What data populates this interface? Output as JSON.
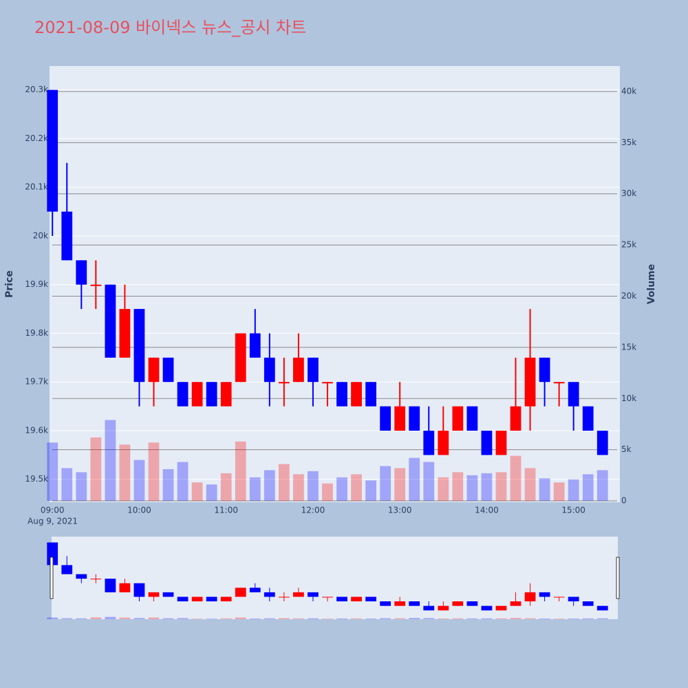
{
  "chart_data": {
    "type": "candlestick",
    "title": "2021-08-09 바이넥스 뉴스_공시 차트",
    "y_label": "Price",
    "y2_label": "Volume",
    "x_date_label": "Aug 9, 2021",
    "increasing_color": "#ff0000",
    "decreasing_color": "#0000ff",
    "x": [
      "09:00",
      "09:10",
      "09:20",
      "09:30",
      "09:40",
      "09:50",
      "10:00",
      "10:10",
      "10:20",
      "10:30",
      "10:40",
      "10:50",
      "11:00",
      "11:10",
      "11:20",
      "11:30",
      "11:40",
      "11:50",
      "12:00",
      "12:10",
      "12:20",
      "12:30",
      "12:40",
      "12:50",
      "13:00",
      "13:10",
      "13:20",
      "13:30",
      "13:40",
      "13:50",
      "14:00",
      "14:10",
      "14:20",
      "14:30",
      "14:40",
      "14:50",
      "15:00",
      "15:10",
      "15:20"
    ],
    "open": [
      20300,
      20050,
      19950,
      19900,
      19900,
      19750,
      19850,
      19700,
      19750,
      19700,
      19650,
      19700,
      19650,
      19700,
      19800,
      19750,
      19700,
      19700,
      19750,
      19700,
      19700,
      19650,
      19700,
      19650,
      19600,
      19650,
      19600,
      19550,
      19600,
      19650,
      19600,
      19550,
      19600,
      19650,
      19750,
      19700,
      19700,
      19650,
      19600
    ],
    "high": [
      20300,
      20150,
      19950,
      19950,
      19900,
      19900,
      19850,
      19750,
      19750,
      19700,
      19700,
      19700,
      19700,
      19800,
      19850,
      19800,
      19750,
      19800,
      19750,
      19700,
      19700,
      19700,
      19700,
      19650,
      19700,
      19650,
      19650,
      19650,
      19650,
      19650,
      19600,
      19600,
      19750,
      19850,
      19750,
      19700,
      19700,
      19650,
      19600
    ],
    "low": [
      20000,
      19950,
      19850,
      19850,
      19750,
      19750,
      19650,
      19650,
      19700,
      19650,
      19650,
      19650,
      19650,
      19700,
      19750,
      19650,
      19650,
      19700,
      19650,
      19650,
      19650,
      19650,
      19650,
      19600,
      19600,
      19600,
      19550,
      19550,
      19600,
      19600,
      19550,
      19550,
      19600,
      19600,
      19650,
      19650,
      19600,
      19600,
      19550
    ],
    "close": [
      20050,
      19950,
      19900,
      19900,
      19750,
      19850,
      19700,
      19750,
      19700,
      19650,
      19700,
      19650,
      19700,
      19800,
      19750,
      19700,
      19700,
      19750,
      19700,
      19700,
      19650,
      19700,
      19650,
      19600,
      19650,
      19600,
      19550,
      19600,
      19650,
      19600,
      19550,
      19600,
      19650,
      19750,
      19700,
      19700,
      19650,
      19600,
      19550
    ],
    "volume": [
      5700,
      3200,
      2800,
      6200,
      7900,
      5500,
      4000,
      5700,
      3100,
      3800,
      1800,
      1600,
      2700,
      5800,
      2300,
      3000,
      3600,
      2600,
      2900,
      1700,
      2300,
      2600,
      2000,
      3400,
      3200,
      4200,
      3800,
      2300,
      2800,
      2500,
      2700,
      2800,
      4400,
      3200,
      2200,
      1800,
      2100,
      2600,
      3000
    ],
    "xlim": [
      "08:58",
      "15:32"
    ],
    "xticks": [
      "09:00",
      "10:00",
      "11:00",
      "12:00",
      "13:00",
      "14:00",
      "15:00"
    ],
    "ylim": [
      19453,
      20349
    ],
    "yticks": [
      {
        "value": 19500,
        "label": "19.5k"
      },
      {
        "value": 19600,
        "label": "19.6k"
      },
      {
        "value": 19700,
        "label": "19.7k"
      },
      {
        "value": 19800,
        "label": "19.8k"
      },
      {
        "value": 19900,
        "label": "19.9k"
      },
      {
        "value": 20000,
        "label": "20k"
      },
      {
        "value": 20100,
        "label": "20.1k"
      },
      {
        "value": 20200,
        "label": "20.2k"
      },
      {
        "value": 20300,
        "label": "20.3k"
      }
    ],
    "y2lim": [
      -134,
      42487
    ],
    "y2ticks": [
      0,
      {
        "value": 5000,
        "label": "5k"
      },
      {
        "value": 10000,
        "label": "10k"
      },
      {
        "value": 15000,
        "label": "15k"
      },
      {
        "value": 20000,
        "label": "20k"
      },
      {
        "value": 25000,
        "label": "25k"
      },
      {
        "value": 30000,
        "label": "30k"
      },
      {
        "value": 35000,
        "label": "35k"
      },
      {
        "value": 40000,
        "label": "40k"
      }
    ],
    "grid": true
  }
}
